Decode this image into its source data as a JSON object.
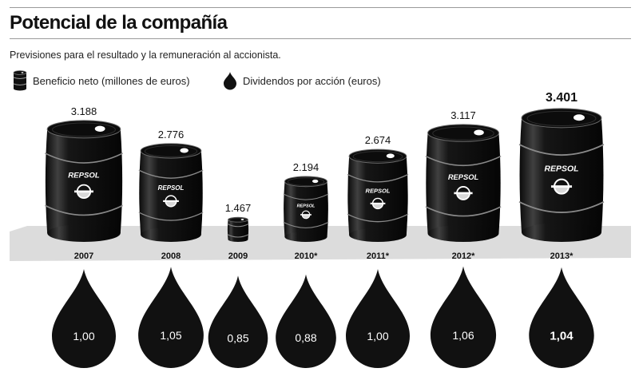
{
  "title": "Potencial de la compañía",
  "subtitle": "Previsiones para el resultado y la remuneración al accionista.",
  "legend": [
    {
      "icon": "barrel-icon",
      "label": "Beneficio neto (millones de euros)"
    },
    {
      "icon": "drop-icon",
      "label": "Dividendos por acción (euros)"
    }
  ],
  "logo_text": "REPSOL",
  "colors": {
    "ink": "#111111",
    "shelf": "#dcdcdc",
    "drop_text": "#ffffff",
    "barrel_logo": "#ffffff"
  },
  "chart_data": {
    "type": "bar",
    "categories": [
      "2007",
      "2008",
      "2009",
      "2010*",
      "2011*",
      "2012*",
      "2013*"
    ],
    "series": [
      {
        "name": "Beneficio neto (millones de euros)",
        "values": [
          3188,
          2776,
          1467,
          2194,
          2674,
          3117,
          3401
        ],
        "labels": [
          "3.188",
          "2.776",
          "1.467",
          "2.194",
          "2.674",
          "3.117",
          "3.401"
        ]
      },
      {
        "name": "Dividendos por acción (euros)",
        "values": [
          1.0,
          1.05,
          0.85,
          0.88,
          1.0,
          1.06,
          1.04
        ],
        "labels": [
          "1,00",
          "1,05",
          "0,85",
          "0,88",
          "1,00",
          "1,06",
          "1,04"
        ]
      }
    ],
    "highlight": "2013*"
  }
}
